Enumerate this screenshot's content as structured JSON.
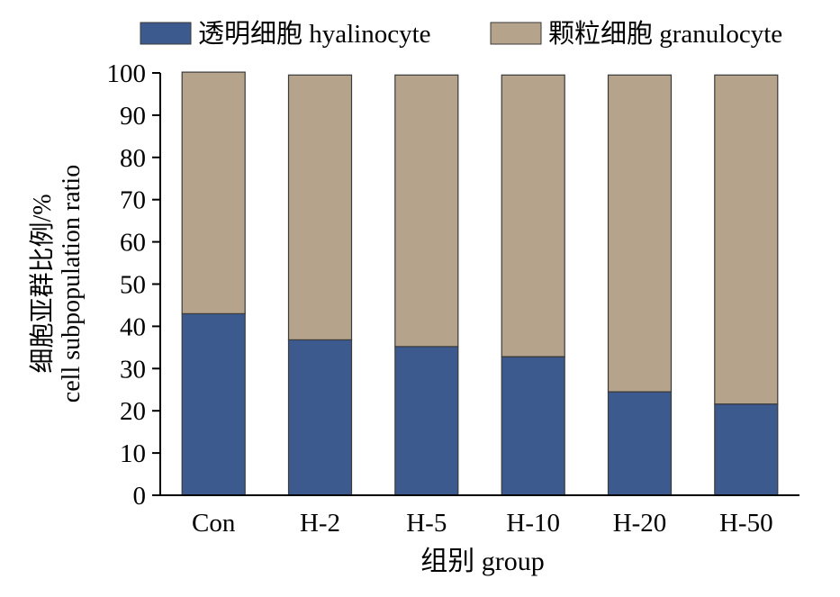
{
  "chart_data": {
    "type": "bar",
    "stacked": true,
    "categories": [
      "Con",
      "H-2",
      "H-5",
      "H-10",
      "H-20",
      "H-50"
    ],
    "series": [
      {
        "name": "透明细胞 hyalinocyte",
        "color": "#3d5a8e",
        "values": [
          43,
          36.8,
          35.2,
          32.8,
          24.5,
          21.6
        ]
      },
      {
        "name": "颗粒细胞 granulocyte",
        "color": "#b5a48b",
        "values": [
          57.2,
          62.7,
          64.3,
          66.7,
          75,
          77.9
        ]
      }
    ],
    "xlabel": "组别 group",
    "ylabel_lines": [
      "细胞亚群比例/%",
      "cell subpopulation ratio"
    ],
    "ylim": [
      0,
      100
    ],
    "yticks": [
      0,
      10,
      20,
      30,
      40,
      50,
      60,
      70,
      80,
      90,
      100
    ],
    "legend_position": "top",
    "grid": false,
    "bar_edge_color": "#3a3a3a"
  }
}
